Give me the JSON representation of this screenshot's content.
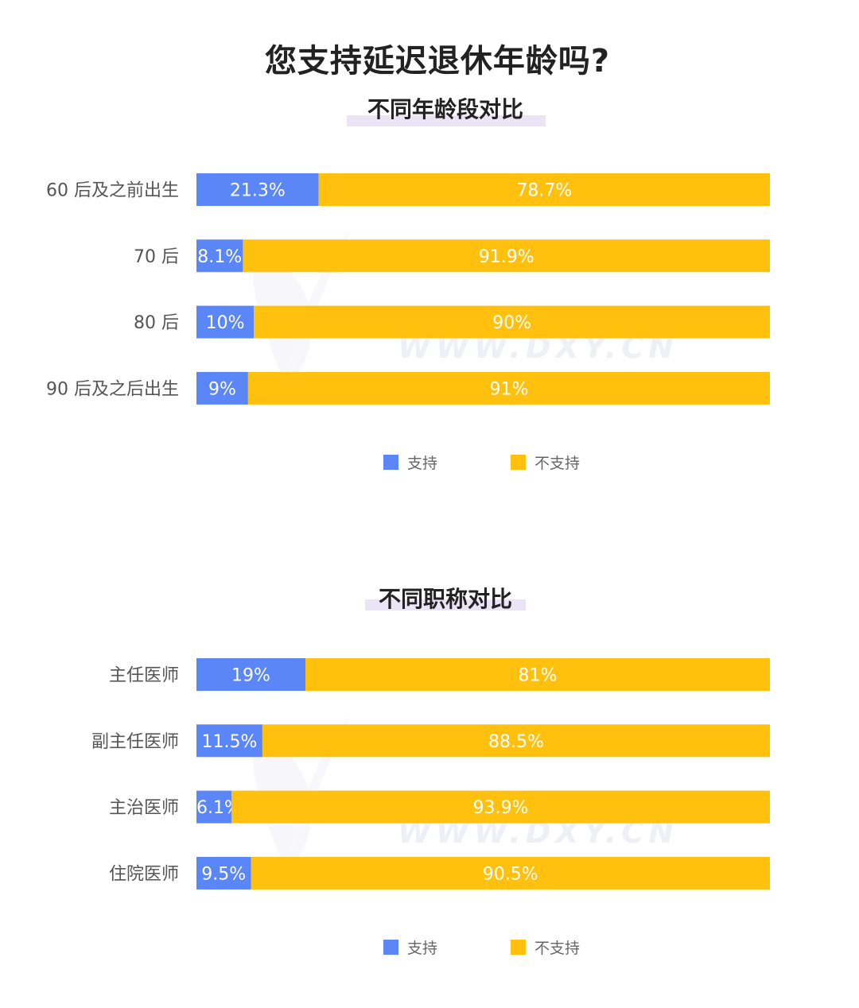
{
  "title": "您支持延迟退休年龄吗?",
  "watermark_text": "WWW.DXY.CN",
  "colors": {
    "support": "#5B86F7",
    "not_support": "#FFC00E",
    "label": "#555555",
    "bar_text": "#ffffff"
  },
  "chart_data": [
    {
      "type": "bar",
      "orientation": "horizontal",
      "stacked": true,
      "title": "不同年龄段对比",
      "categories": [
        "60 后及之前出生",
        "70 后",
        "80 后",
        "90 后及之后出生"
      ],
      "series": [
        {
          "name": "支持",
          "values": [
            21.3,
            8.1,
            10,
            9
          ],
          "labels": [
            "21.3%",
            "8.1%",
            "10%",
            "9%"
          ]
        },
        {
          "name": "不支持",
          "values": [
            78.7,
            91.9,
            90,
            91
          ],
          "labels": [
            "78.7%",
            "91.9%",
            "90%",
            "91%"
          ]
        }
      ],
      "xlim": [
        0,
        100
      ],
      "grid": false,
      "legend": "bottom-center"
    },
    {
      "type": "bar",
      "orientation": "horizontal",
      "stacked": true,
      "title": "不同职称对比",
      "categories": [
        "主任医师",
        "副主任医师",
        "主治医师",
        "住院医师"
      ],
      "series": [
        {
          "name": "支持",
          "values": [
            19,
            11.5,
            6.1,
            9.5
          ],
          "labels": [
            "19%",
            "11.5%",
            "6.1%",
            "9.5%"
          ]
        },
        {
          "name": "不支持",
          "values": [
            81,
            88.5,
            93.9,
            90.5
          ],
          "labels": [
            "81%",
            "88.5%",
            "93.9%",
            "90.5%"
          ]
        }
      ],
      "xlim": [
        0,
        100
      ],
      "grid": false,
      "legend": "bottom-center"
    }
  ]
}
